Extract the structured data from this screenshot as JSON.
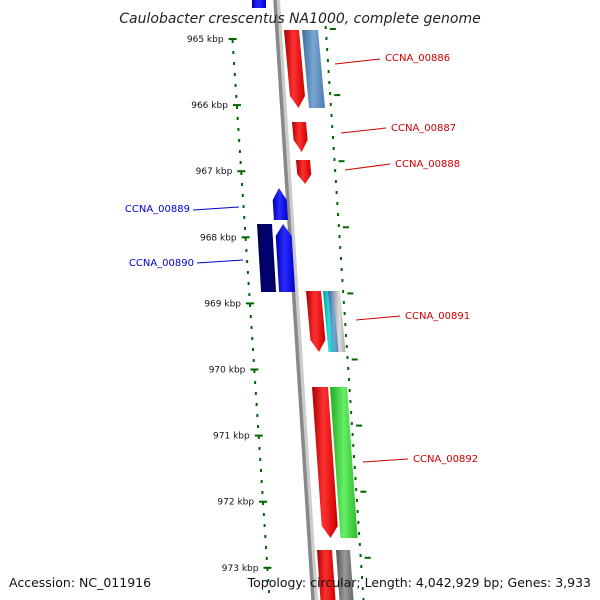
{
  "title": "Caulobacter crescentus NA1000, complete genome",
  "footer": {
    "accession": "Accession: NC_011916",
    "summary": "Topology: circular; Length: 4,042,929 bp; Genes: 3,933"
  },
  "colors": {
    "forward_label": "#cc0000",
    "reverse_label": "#0000cc",
    "tick": "#006600",
    "backbone": "#888888"
  },
  "scale_ticks": [
    {
      "label": "965 kbp",
      "kbp": 965
    },
    {
      "label": "966 kbp",
      "kbp": 966
    },
    {
      "label": "967 kbp",
      "kbp": 967
    },
    {
      "label": "968 kbp",
      "kbp": 968
    },
    {
      "label": "969 kbp",
      "kbp": 969
    },
    {
      "label": "970 kbp",
      "kbp": 970
    },
    {
      "label": "971 kbp",
      "kbp": 971
    },
    {
      "label": "972 kbp",
      "kbp": 972
    },
    {
      "label": "973 kbp",
      "kbp": 973
    }
  ],
  "gene_labels": [
    {
      "text": "CCNA_00886",
      "strand": "forward"
    },
    {
      "text": "CCNA_00887",
      "strand": "forward"
    },
    {
      "text": "CCNA_00888",
      "strand": "forward"
    },
    {
      "text": "CCNA_00889",
      "strand": "reverse"
    },
    {
      "text": "CCNA_00890",
      "strand": "reverse"
    },
    {
      "text": "CCNA_00891",
      "strand": "forward"
    },
    {
      "text": "CCNA_00892",
      "strand": "forward"
    }
  ],
  "features": [
    {
      "name": "gene-CCNA_00886",
      "strand": "forward",
      "color": "#ff0000",
      "arrow": true
    },
    {
      "name": "cds-CCNA_00886",
      "strand": "forward",
      "color": "#5588bb",
      "arrow": false
    },
    {
      "name": "gene-CCNA_00887",
      "strand": "forward",
      "color": "#ff0000",
      "arrow": true
    },
    {
      "name": "gene-CCNA_00888",
      "strand": "forward",
      "color": "#ff0000",
      "arrow": true
    },
    {
      "name": "gene-CCNA_00889",
      "strand": "reverse",
      "color": "#0000ff",
      "arrow": true
    },
    {
      "name": "gene-CCNA_00890",
      "strand": "reverse",
      "color": "#0000ff",
      "arrow": true
    },
    {
      "name": "cds-CCNA_00890",
      "strand": "reverse",
      "color": "#000066",
      "arrow": false
    },
    {
      "name": "gene-CCNA_00891",
      "strand": "forward",
      "color": "#ff0000",
      "arrow": true
    },
    {
      "name": "misc-CCNA_00891-a",
      "strand": "forward",
      "color": "#00bbbb",
      "arrow": false
    },
    {
      "name": "misc-CCNA_00891-b",
      "strand": "forward",
      "color": "#5588bb",
      "arrow": false
    },
    {
      "name": "misc-CCNA_00891-c",
      "strand": "forward",
      "color": "#aaaaaa",
      "arrow": false
    },
    {
      "name": "gene-CCNA_00892",
      "strand": "forward",
      "color": "#ff0000",
      "arrow": true
    },
    {
      "name": "cds-CCNA_00892",
      "strand": "forward",
      "color": "#33cc33",
      "arrow": false
    },
    {
      "name": "gene-next",
      "strand": "forward",
      "color": "#ff0000",
      "arrow": false
    },
    {
      "name": "cds-next",
      "strand": "forward",
      "color": "#777777",
      "arrow": false
    },
    {
      "name": "gene-prev",
      "strand": "reverse",
      "color": "#0000ff",
      "arrow": false
    }
  ]
}
